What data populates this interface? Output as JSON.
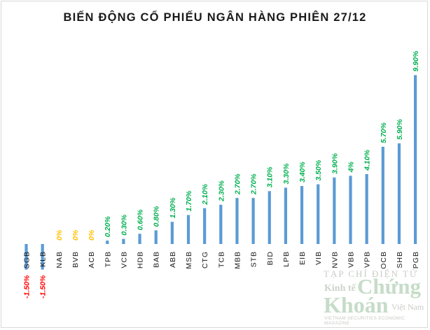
{
  "chart_data": {
    "type": "bar",
    "title": "BIẾN ĐỘNG CỔ PHIẾU NGÂN HÀNG PHIÊN 27/12",
    "categories": [
      "SGB",
      "KLB",
      "NAB",
      "BVB",
      "ACB",
      "TPB",
      "VCB",
      "HDB",
      "BAB",
      "ABB",
      "MSB",
      "CTG",
      "TCB",
      "MBB",
      "STB",
      "BID",
      "LPB",
      "EIB",
      "VIB",
      "NVB",
      "VBB",
      "VPB",
      "OCB",
      "SHB",
      "PGB"
    ],
    "values": [
      -1.5,
      -1.5,
      0,
      0,
      0,
      0.2,
      0.3,
      0.6,
      0.8,
      1.3,
      1.7,
      2.1,
      2.3,
      2.7,
      2.7,
      3.1,
      3.3,
      3.4,
      3.5,
      3.9,
      4,
      4.1,
      5.7,
      5.9,
      9.9
    ],
    "data_labels": [
      "-1.50%",
      "-1.50%",
      "0%",
      "0%",
      "0%",
      "0.20%",
      "0.30%",
      "0.60%",
      "0.80%",
      "1.30%",
      "1.70%",
      "2.10%",
      "2.30%",
      "2.70%",
      "2.70%",
      "3.10%",
      "3.30%",
      "3.40%",
      "3.50%",
      "3.90%",
      "4%",
      "4.10%",
      "5.70%",
      "5.90%",
      "9.90%"
    ],
    "unit": "%",
    "grid": false,
    "legend": "none",
    "colors": {
      "bar": "#5b9bd5",
      "positive": "#00b050",
      "negative": "#ff0000",
      "zero": "#ffc000"
    }
  },
  "watermark": {
    "line1": "TẠP CHÍ ĐIỆN TỬ",
    "kinh_te": "Kinh tế",
    "chung": "Chứng",
    "khoan": "Khoán",
    "viet_nam": "Việt Nam",
    "tagline": "VIETNAM SECURITIES ECONOMIC MAGAZINE"
  }
}
